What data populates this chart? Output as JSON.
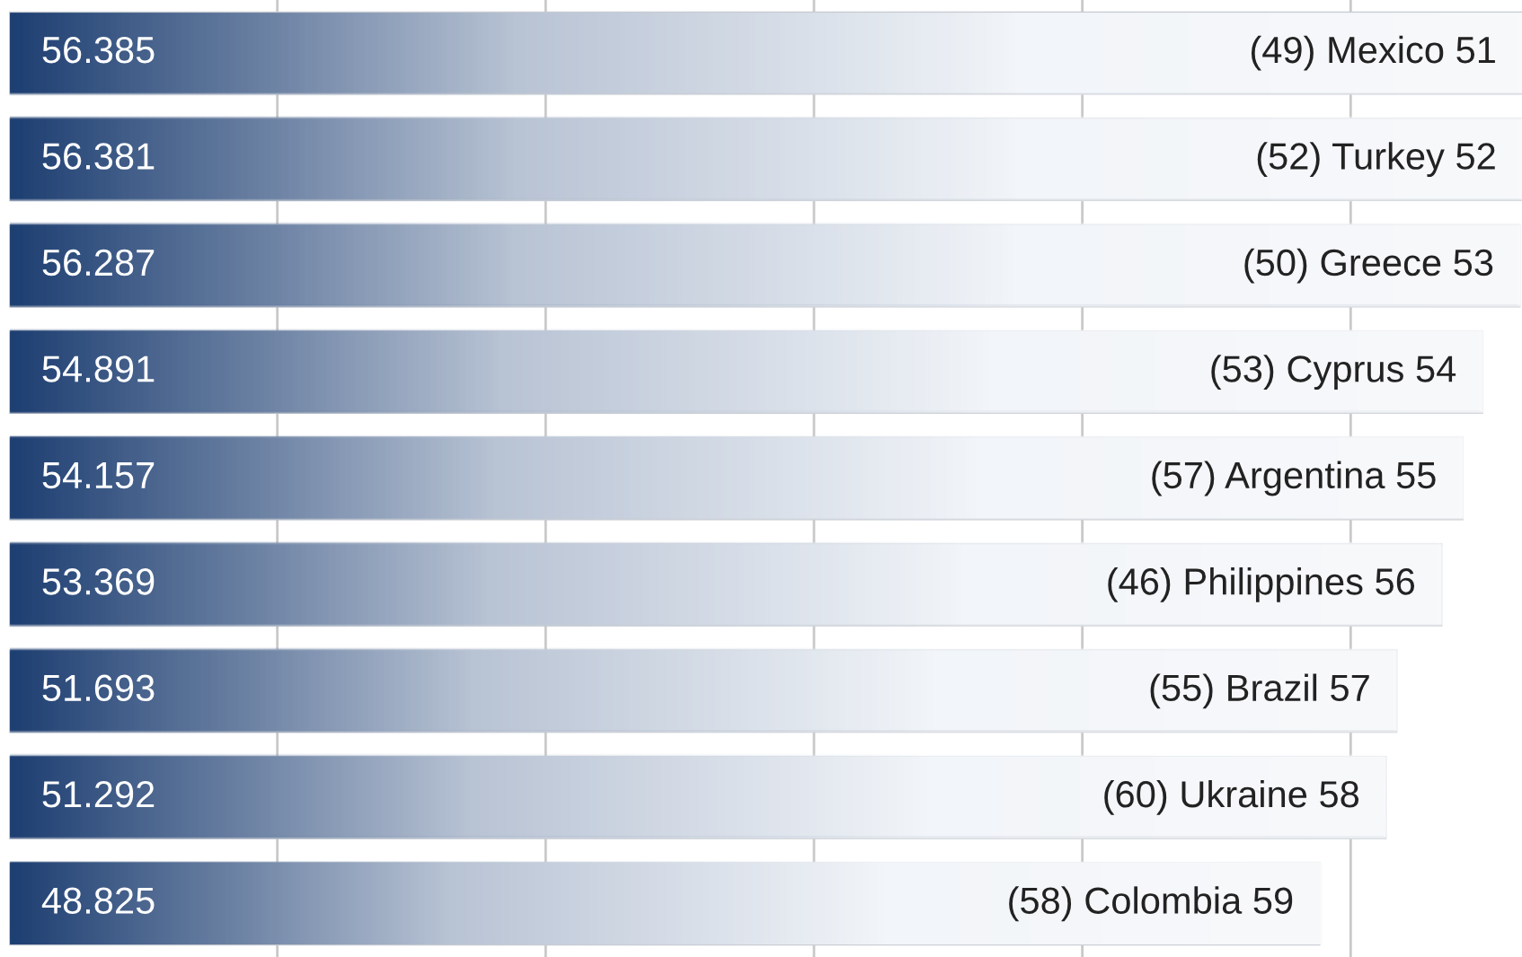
{
  "chart_data": {
    "type": "bar",
    "orientation": "horizontal",
    "categories": [
      "(49) Mexico 51",
      "(52) Turkey 52",
      "(50) Greece 53",
      "(53) Cyprus 54",
      "(57) Argentina 55",
      "(46) Philippines 56",
      "(55) Brazil 57",
      "(60) Ukraine 58",
      "(58) Colombia 59"
    ],
    "series": [
      {
        "color": "#1e3f72",
        "values": [
          56.385,
          56.381,
          56.287,
          54.891,
          54.157,
          53.369,
          51.693,
          51.292,
          48.825
        ]
      }
    ],
    "xticks": [
      10,
      20,
      30,
      40,
      50
    ],
    "grid": "x",
    "tick_labels": false,
    "data_labels": true
  }
}
